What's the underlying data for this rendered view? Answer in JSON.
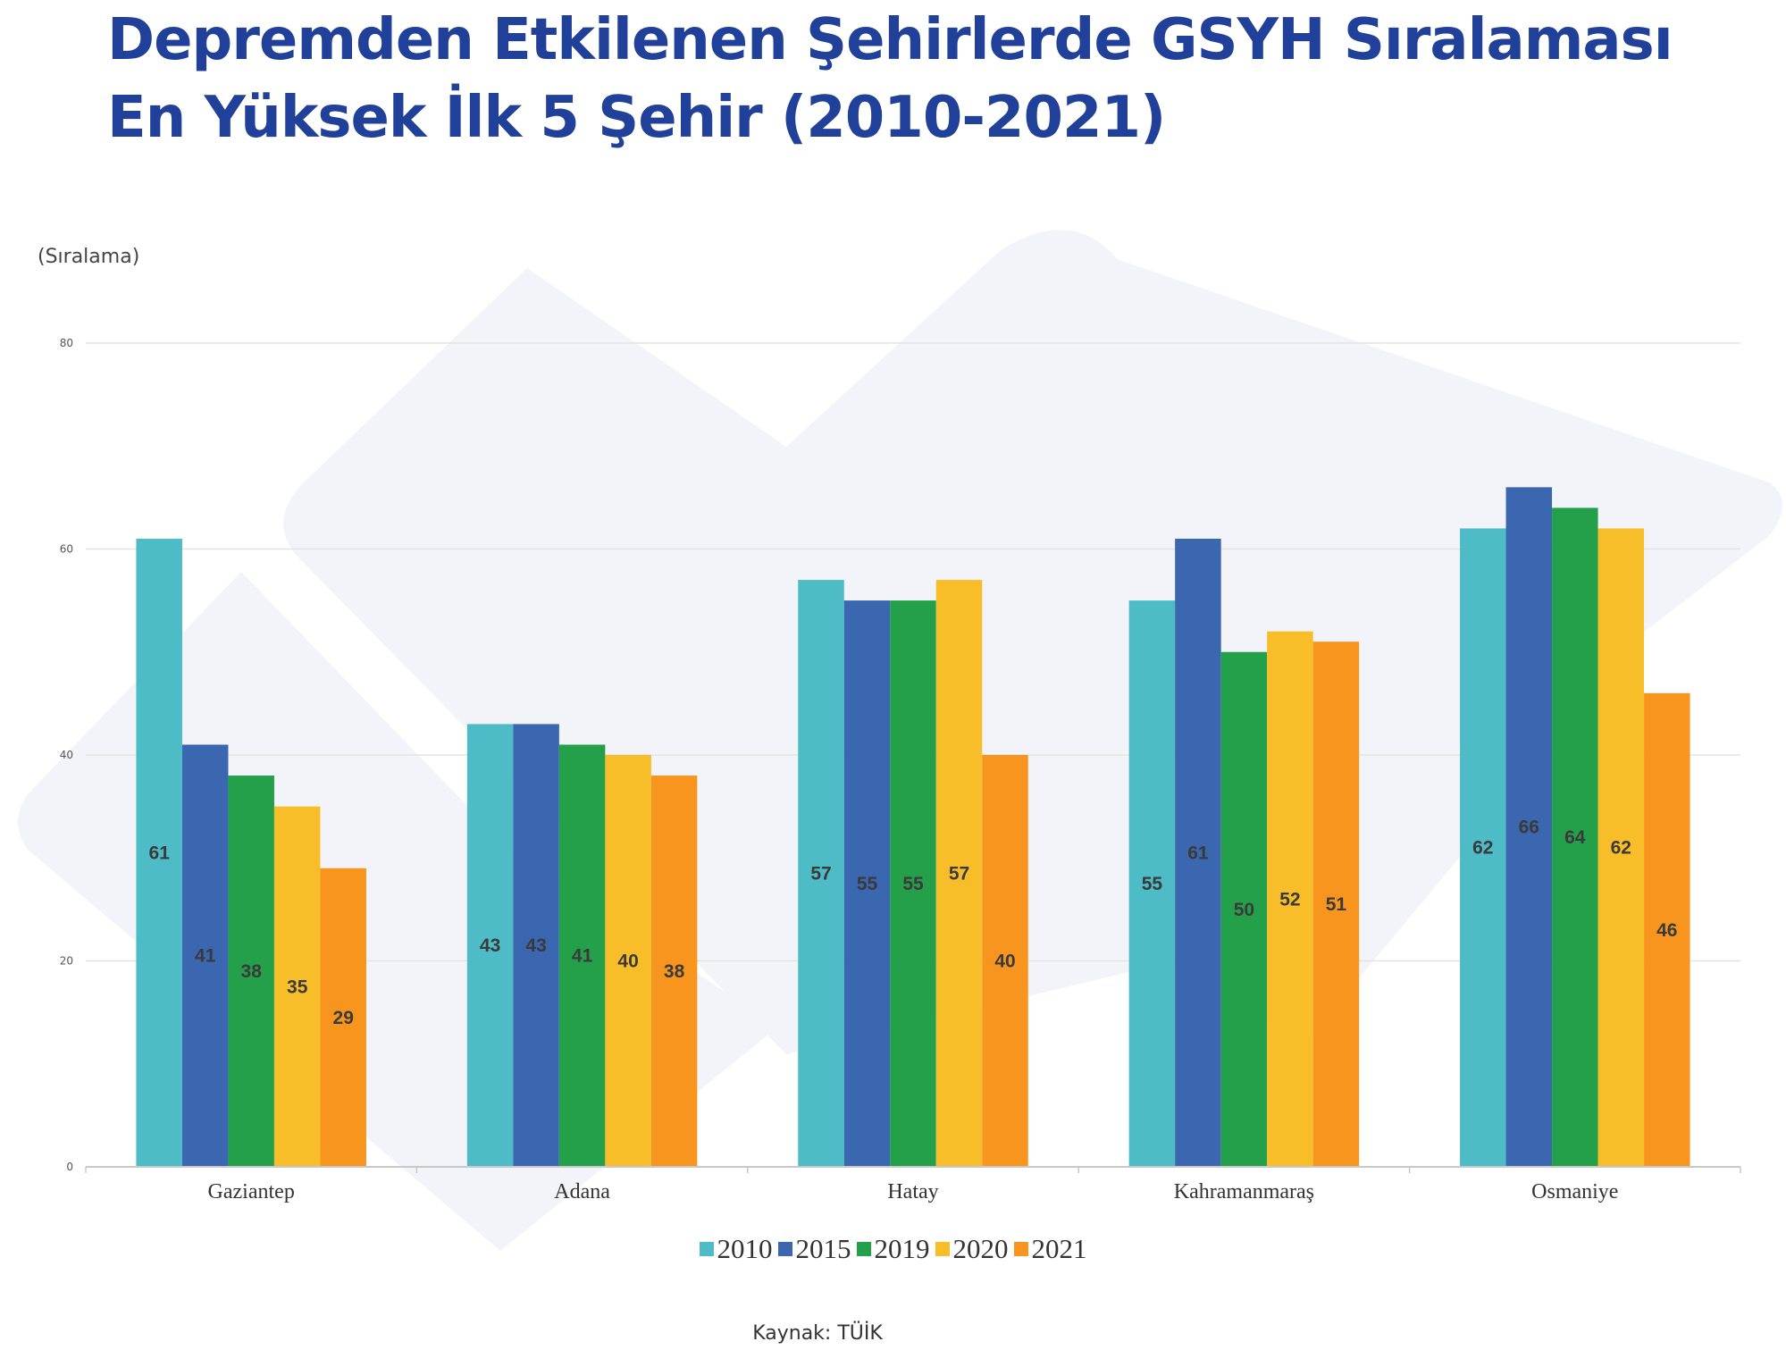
{
  "page": {
    "title_line1": "Depremden Etkilenen Şehirlerde GSYH Sıralaması",
    "title_line2": "En Yüksek İlk 5 Şehir (2010-2021)",
    "unit_label": "(Sıralama)",
    "source": "Kaynak: TÜİK",
    "title_color": "#21409a"
  },
  "chart_data": {
    "type": "bar",
    "categories": [
      "Gaziantep",
      "Adana",
      "Hatay",
      "Kahramanmaraş",
      "Osmaniye"
    ],
    "series": [
      {
        "name": "2010",
        "color": "#4dbcc6",
        "values": [
          61,
          43,
          57,
          55,
          62
        ]
      },
      {
        "name": "2015",
        "color": "#3a67b0",
        "values": [
          41,
          43,
          55,
          61,
          66
        ]
      },
      {
        "name": "2019",
        "color": "#24a04a",
        "values": [
          38,
          41,
          55,
          50,
          64
        ]
      },
      {
        "name": "2020",
        "color": "#f8be2a",
        "values": [
          35,
          40,
          57,
          52,
          62
        ]
      },
      {
        "name": "2021",
        "color": "#f7951f",
        "values": [
          29,
          38,
          40,
          51,
          46
        ]
      }
    ],
    "ylim": [
      0,
      80
    ],
    "yticks": [
      0,
      20,
      40,
      60,
      80
    ],
    "ylabel": "(Sıralama)",
    "legend_position": "bottom",
    "grid": true
  }
}
